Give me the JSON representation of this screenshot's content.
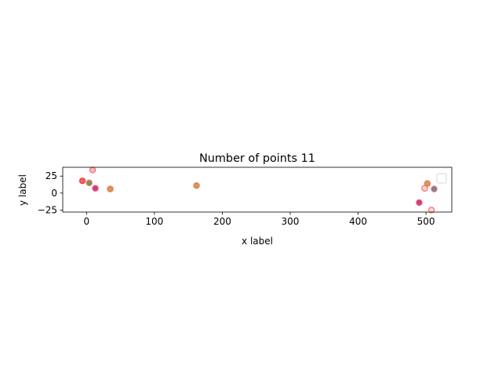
{
  "chart_data": {
    "type": "scatter",
    "title": "Number of points 11",
    "xlabel": "x label",
    "ylabel": "y label",
    "xlim": [
      -35,
      538
    ],
    "ylim": [
      -28,
      38
    ],
    "xticks": [
      0,
      100,
      200,
      300,
      400,
      500
    ],
    "yticks": [
      -25,
      0,
      25
    ],
    "grid": false,
    "legend": {
      "placement": "upper right",
      "entries": []
    },
    "points": [
      {
        "x": -6,
        "y": 18,
        "face": "#e36a5c",
        "edge": "#ff3b3b"
      },
      {
        "x": 4,
        "y": 15,
        "face": "#5f9e5f",
        "edge": "#ff6b6b"
      },
      {
        "x": 9,
        "y": 34,
        "face": "#f4b8c2",
        "edge": "#ff6b6b"
      },
      {
        "x": 13,
        "y": 7,
        "face": "#c0448f",
        "edge": "#ff4f6b"
      },
      {
        "x": 35,
        "y": 6,
        "face": "#c8a05a",
        "edge": "#ff6b4a"
      },
      {
        "x": 162,
        "y": 11,
        "face": "#c8a05a",
        "edge": "#ff6b4a"
      },
      {
        "x": 490,
        "y": -14,
        "face": "#c0448f",
        "edge": "#ff4f6b"
      },
      {
        "x": 498,
        "y": 7,
        "face": "#fbd3d8",
        "edge": "#ff6b6b"
      },
      {
        "x": 502,
        "y": 14,
        "face": "#c8a05a",
        "edge": "#ff6b4a"
      },
      {
        "x": 508,
        "y": -25,
        "face": "#fbd3d8",
        "edge": "#ff6b6b"
      },
      {
        "x": 512,
        "y": 6,
        "face": "#5f8ea0",
        "edge": "#ff6b6b"
      }
    ]
  }
}
